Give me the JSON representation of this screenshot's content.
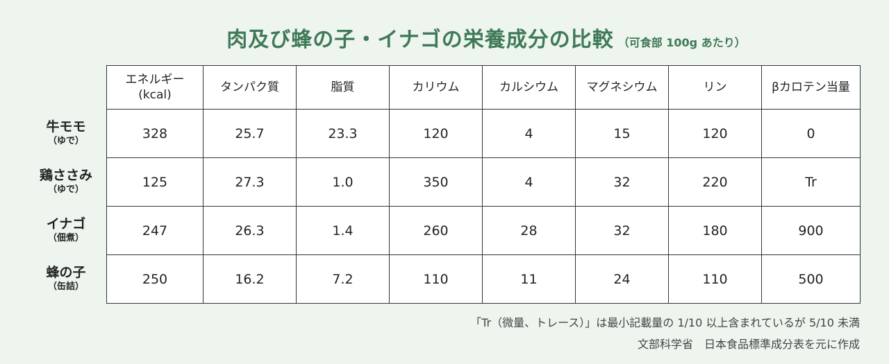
{
  "title": {
    "main": "肉及び蜂の子・イナゴの栄養成分の比較",
    "sub": "（可食部 100g あたり）"
  },
  "table": {
    "headers": [
      [
        "エネルギー",
        "(kcal)"
      ],
      [
        "タンパク質"
      ],
      [
        "脂質"
      ],
      [
        "カリウム"
      ],
      [
        "カルシウム"
      ],
      [
        "マグネシウム"
      ],
      [
        "リン"
      ],
      [
        "βカロテン当量"
      ]
    ],
    "rows": [
      {
        "name": "牛モモ",
        "note": "（ゆで）",
        "values": [
          "328",
          "25.7",
          "23.3",
          "120",
          "4",
          "15",
          "120",
          "0"
        ]
      },
      {
        "name": "鶏ささみ",
        "note": "（ゆで）",
        "values": [
          "125",
          "27.3",
          "1.0",
          "350",
          "4",
          "32",
          "220",
          "Tr"
        ]
      },
      {
        "name": "イナゴ",
        "note": "（佃煮）",
        "values": [
          "247",
          "26.3",
          "1.4",
          "260",
          "28",
          "32",
          "180",
          "900"
        ]
      },
      {
        "name": "蜂の子",
        "note": "（缶詰）",
        "values": [
          "250",
          "16.2",
          "7.2",
          "110",
          "11",
          "24",
          "110",
          "500"
        ]
      }
    ]
  },
  "footnotes": {
    "line1": "「Tr（微量、トレース）」は最小記載量の 1/10 以上含まれているが 5/10 未満",
    "line2": "文部科学省　日本食品標準成分表を元に作成"
  }
}
